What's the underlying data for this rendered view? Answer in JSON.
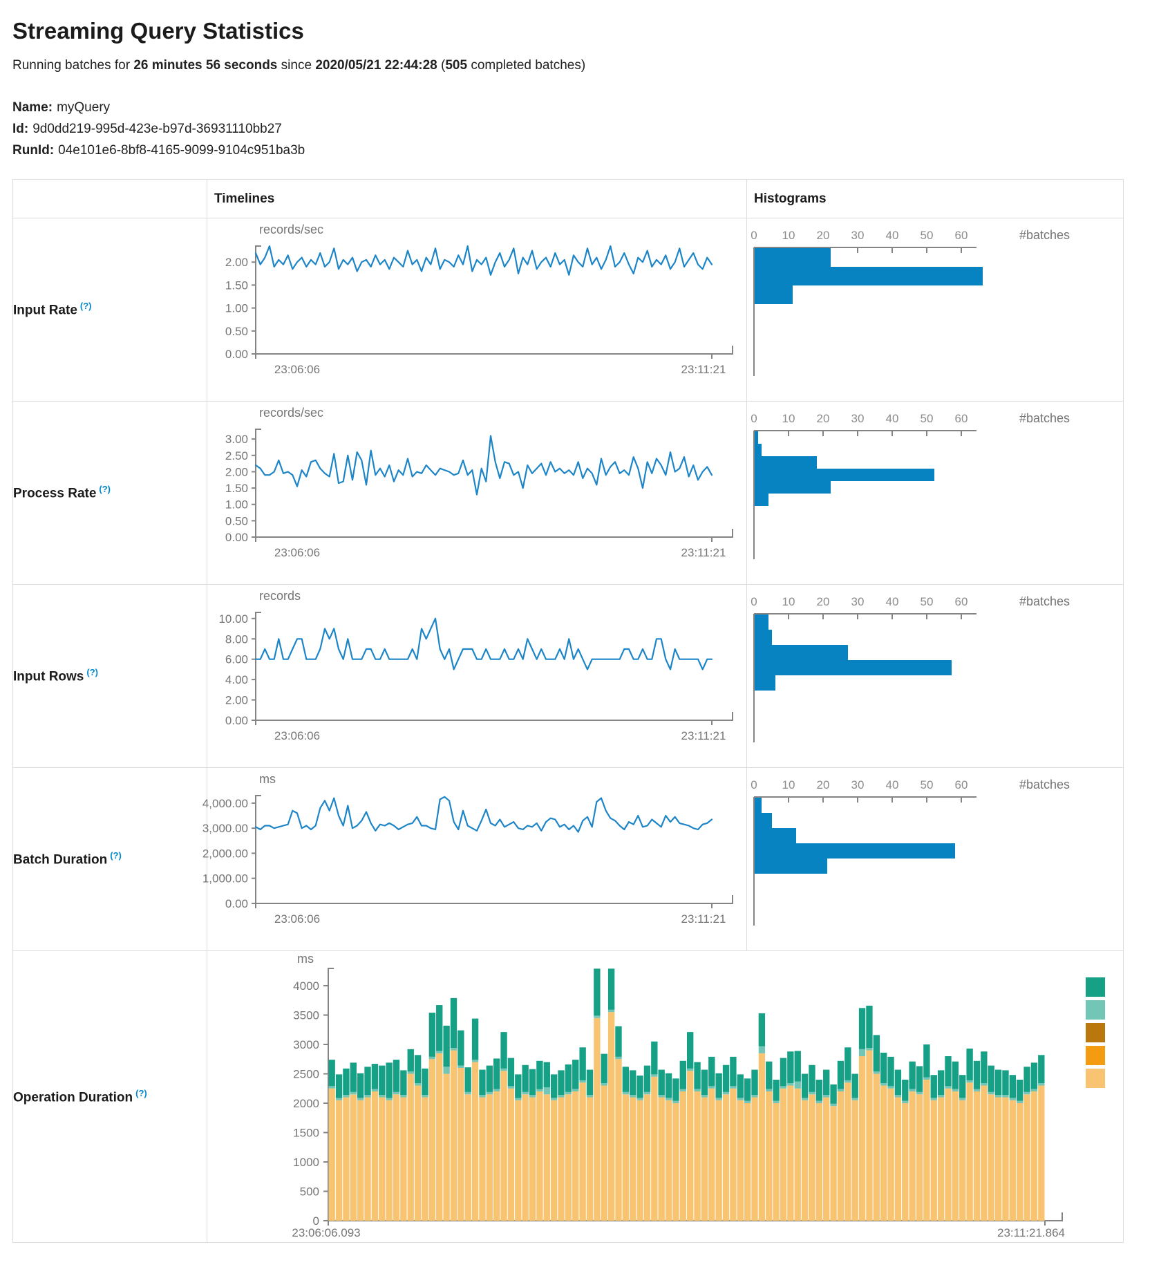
{
  "page": {
    "title": "Streaming Query Statistics",
    "subtitle": {
      "prefix": "Running batches for ",
      "duration": "26 minutes 56 seconds",
      "middle": " since ",
      "start_time": "2020/05/21 22:44:28",
      "paren_open": " (",
      "batch_count": "505",
      "suffix": " completed batches)"
    },
    "meta": {
      "name_label": "Name:",
      "name": "myQuery",
      "id_label": "Id:",
      "id": "9d0dd219-995d-423e-b97d-36931110bb27",
      "runid_label": "RunId:",
      "runid": "04e101e6-8bf8-4165-9099-9104c951ba3b"
    }
  },
  "table": {
    "headers": {
      "timelines": "Timelines",
      "histograms": "Histograms"
    },
    "rows": [
      {
        "label": "Input Rate",
        "help": "(?)"
      },
      {
        "label": "Process Rate",
        "help": "(?)"
      },
      {
        "label": "Input Rows",
        "help": "(?)"
      },
      {
        "label": "Batch Duration",
        "help": "(?)"
      },
      {
        "label": "Operation Duration",
        "help": "(?)"
      }
    ]
  },
  "colors": {
    "line_blue": "#1c85c7",
    "hist_bar_blue": "#0783c2",
    "axis_gray": "#848484",
    "label_gray": "#757575",
    "tick_gray": "#8c8c8c",
    "help_blue": "#0088cc",
    "border_gray": "#dcdcdc",
    "stack_light_orange": "#F8C471",
    "stack_orange": "#F39C12",
    "stack_brown": "#B9770E",
    "stack_light_teal": "#73C6B6",
    "stack_green": "#16A085"
  },
  "chart_data": [
    {
      "type": "line",
      "metric": "input_rate",
      "unit": "records/sec",
      "x_start": "23:06:06",
      "x_end": "23:11:21",
      "y_max": 2.35,
      "y_ticks": [
        0,
        0.5,
        1,
        1.5,
        2
      ],
      "y_tick_labels": [
        "0.00",
        "0.50",
        "1.00",
        "1.50",
        "2.00"
      ],
      "values": [
        2.2,
        1.95,
        2.1,
        2.35,
        1.9,
        2.05,
        1.95,
        2.15,
        1.85,
        2.0,
        2.1,
        1.9,
        2.05,
        1.95,
        2.2,
        1.9,
        2.0,
        2.3,
        1.85,
        2.05,
        1.95,
        2.1,
        1.8,
        2.0,
        2.05,
        1.9,
        2.15,
        1.95,
        2.05,
        1.85,
        2.1,
        2.0,
        1.9,
        2.25,
        1.95,
        2.05,
        1.8,
        2.1,
        1.95,
        2.3,
        1.85,
        2.05,
        2.0,
        1.9,
        2.15,
        1.95,
        2.35,
        1.8,
        2.05,
        1.95,
        2.1,
        1.72,
        2.0,
        2.2,
        1.9,
        2.05,
        2.3,
        1.75,
        2.1,
        1.95,
        2.25,
        1.85,
        2.0,
        2.1,
        1.9,
        2.2,
        1.95,
        2.05,
        1.72,
        2.15,
        2.0,
        1.9,
        2.3,
        1.95,
        2.1,
        1.85,
        2.05,
        2.35,
        1.9,
        2.0,
        2.2,
        1.95,
        1.75,
        2.1,
        2.0,
        2.25,
        1.9,
        2.05,
        1.95,
        2.15,
        1.85,
        2.0,
        2.3,
        1.9,
        2.05,
        2.2,
        1.95,
        1.85,
        2.1,
        1.95
      ]
    },
    {
      "type": "hbar",
      "metric": "input_rate",
      "axis_label": "#batches",
      "x_ticks": [
        0,
        10,
        20,
        30,
        40,
        50,
        60
      ],
      "bin_values": [
        22,
        66,
        11
      ]
    },
    {
      "type": "line",
      "metric": "process_rate",
      "unit": "records/sec",
      "x_start": "23:06:06",
      "x_end": "23:11:21",
      "y_max": 3.3,
      "y_ticks": [
        0,
        0.5,
        1,
        1.5,
        2,
        2.5,
        3
      ],
      "y_tick_labels": [
        "0.00",
        "0.50",
        "1.00",
        "1.50",
        "2.00",
        "2.50",
        "3.00"
      ],
      "values": [
        2.2,
        2.1,
        1.9,
        1.9,
        2.0,
        2.35,
        1.95,
        2.0,
        1.9,
        1.55,
        2.05,
        1.85,
        2.3,
        2.35,
        2.1,
        1.95,
        1.85,
        2.55,
        1.65,
        1.7,
        2.5,
        1.75,
        2.6,
        2.35,
        1.6,
        2.65,
        1.9,
        2.1,
        1.85,
        2.2,
        1.7,
        2.05,
        1.9,
        2.4,
        1.85,
        2.0,
        1.95,
        2.2,
        2.05,
        1.9,
        2.1,
        2.05,
        2.0,
        1.9,
        1.95,
        2.35,
        1.9,
        2.05,
        1.3,
        2.1,
        1.7,
        3.1,
        2.3,
        1.8,
        2.3,
        2.25,
        1.9,
        2.0,
        1.5,
        2.2,
        1.95,
        2.1,
        2.25,
        1.9,
        2.3,
        2.0,
        2.1,
        1.95,
        2.05,
        1.9,
        2.3,
        1.8,
        2.1,
        1.95,
        1.6,
        2.4,
        1.9,
        2.15,
        2.3,
        1.95,
        2.05,
        1.9,
        2.45,
        2.1,
        1.5,
        2.3,
        1.95,
        2.4,
        2.2,
        1.9,
        2.6,
        2.0,
        2.1,
        2.45,
        1.85,
        2.2,
        1.75,
        2.0,
        2.15,
        1.9
      ]
    },
    {
      "type": "hbar",
      "metric": "process_rate",
      "axis_label": "#batches",
      "x_ticks": [
        0,
        10,
        20,
        30,
        40,
        50,
        60
      ],
      "bin_values": [
        1,
        2,
        18,
        52,
        22,
        4
      ]
    },
    {
      "type": "line",
      "metric": "input_rows",
      "unit": "records",
      "x_start": "23:06:06",
      "x_end": "23:11:21",
      "y_max": 10.6,
      "y_ticks": [
        0,
        2,
        4,
        6,
        8,
        10
      ],
      "y_tick_labels": [
        "0.00",
        "2.00",
        "4.00",
        "6.00",
        "8.00",
        "10.00"
      ],
      "values": [
        6,
        6,
        7,
        6,
        6,
        8,
        6,
        6,
        7,
        8,
        8,
        6,
        6,
        6,
        7,
        9,
        8,
        9,
        7,
        6,
        8,
        6,
        6,
        6,
        7,
        7,
        6,
        6,
        7,
        6,
        6,
        6,
        6,
        6,
        7,
        6,
        9,
        8,
        9,
        10,
        7,
        6,
        7,
        5,
        6,
        7,
        7,
        7,
        6,
        6,
        7,
        6,
        6,
        6,
        7,
        6,
        6,
        7,
        6,
        8,
        7,
        6,
        7,
        6,
        6,
        6,
        7,
        6,
        8,
        6,
        7,
        6,
        5,
        6,
        6,
        6,
        6,
        6,
        6,
        6,
        7,
        7,
        6,
        6,
        7,
        6,
        6,
        8,
        8,
        6,
        5,
        7,
        6,
        6,
        6,
        6,
        6,
        5,
        6,
        6
      ]
    },
    {
      "type": "hbar",
      "metric": "input_rows",
      "axis_label": "#batches",
      "x_ticks": [
        0,
        10,
        20,
        30,
        40,
        50,
        60
      ],
      "bin_values": [
        4,
        5,
        27,
        57,
        6
      ]
    },
    {
      "type": "line",
      "metric": "batch_duration",
      "unit": "ms",
      "x_start": "23:06:06",
      "x_end": "23:11:21",
      "y_max": 4300,
      "y_ticks": [
        0,
        1000,
        2000,
        3000,
        4000
      ],
      "y_tick_labels": [
        "0.00",
        "1,000.00",
        "2,000.00",
        "3,000.00",
        "4,000.00"
      ],
      "values": [
        3050,
        2950,
        3100,
        3100,
        3000,
        3050,
        3100,
        3150,
        3700,
        3600,
        3000,
        3100,
        2950,
        3100,
        3800,
        4100,
        3700,
        4200,
        3500,
        3100,
        3900,
        3000,
        3100,
        3300,
        3650,
        3200,
        2900,
        3150,
        3100,
        3200,
        3100,
        2950,
        3050,
        3150,
        3200,
        3450,
        3100,
        3100,
        3000,
        2950,
        4150,
        4250,
        4100,
        3250,
        2950,
        3700,
        3100,
        3000,
        2900,
        3300,
        3750,
        3200,
        3100,
        3350,
        3050,
        3150,
        3250,
        3000,
        2950,
        3100,
        3050,
        3200,
        2900,
        3250,
        3400,
        3350,
        3050,
        3150,
        2950,
        3100,
        2850,
        3300,
        3450,
        3050,
        4050,
        4200,
        3700,
        3400,
        3300,
        3100,
        2950,
        3250,
        3150,
        3500,
        3050,
        3100,
        3350,
        3200,
        3050,
        3500,
        3250,
        3450,
        3200,
        3150,
        3100,
        3000,
        2950,
        3150,
        3200,
        3350
      ]
    },
    {
      "type": "hbar",
      "metric": "batch_duration",
      "axis_label": "#batches",
      "x_ticks": [
        0,
        10,
        20,
        30,
        40,
        50,
        60
      ],
      "bin_values": [
        2,
        5,
        12,
        58,
        21
      ]
    },
    {
      "type": "stacked_bar",
      "metric": "operation_duration",
      "unit": "ms",
      "x_start": "23:06:06.093",
      "x_end": "23:11:21.864",
      "y_max": 4400,
      "y_ticks": [
        0,
        500,
        1000,
        1500,
        2000,
        2500,
        3000,
        3500,
        4000
      ],
      "y_tick_labels": [
        "0",
        "500",
        "1000",
        "1500",
        "2000",
        "2500",
        "3000",
        "3500",
        "4000"
      ],
      "legend_colors": [
        "#16A085",
        "#73C6B6",
        "#B9770E",
        "#F39C12",
        "#F8C471"
      ],
      "series": [
        {
          "color": "#F8C471",
          "values": [
            2250,
            2050,
            2100,
            2150,
            2050,
            2100,
            2200,
            2100,
            2050,
            2150,
            2100,
            2500,
            2300,
            2100,
            2750,
            2850,
            2500,
            2900,
            2600,
            2150,
            2700,
            2100,
            2150,
            2200,
            2550,
            2250,
            2050,
            2150,
            2100,
            2200,
            2150,
            2050,
            2100,
            2150,
            2200,
            2350,
            2100,
            3450,
            2300,
            3550,
            2750,
            2150,
            2100,
            2050,
            2150,
            2450,
            2100,
            2050,
            2000,
            2200,
            2550,
            2200,
            2100,
            2250,
            2050,
            2150,
            2250,
            2050,
            2000,
            2100,
            2850,
            2200,
            2000,
            2250,
            2300,
            2250,
            2050,
            2150,
            2000,
            2100,
            1950,
            2200,
            2350,
            2050,
            2800,
            2900,
            2500,
            2300,
            2250,
            2100,
            2000,
            2200,
            2150,
            2400,
            2050,
            2100,
            2250,
            2200,
            2050,
            2350,
            2200,
            2300,
            2150,
            2100,
            2100,
            2050,
            2000,
            2150,
            2200,
            2300
          ]
        },
        {
          "color": "#73C6B6",
          "values": [
            40,
            40,
            40,
            40,
            40,
            40,
            40,
            40,
            40,
            40,
            40,
            40,
            40,
            40,
            40,
            40,
            120,
            40,
            40,
            40,
            40,
            40,
            40,
            40,
            40,
            40,
            40,
            40,
            40,
            40,
            120,
            40,
            40,
            40,
            40,
            40,
            40,
            40,
            40,
            40,
            40,
            40,
            40,
            40,
            40,
            40,
            40,
            40,
            40,
            40,
            40,
            40,
            40,
            40,
            40,
            40,
            40,
            40,
            40,
            40,
            120,
            40,
            40,
            40,
            40,
            120,
            40,
            40,
            40,
            40,
            40,
            40,
            40,
            40,
            120,
            40,
            40,
            40,
            40,
            40,
            40,
            40,
            40,
            40,
            40,
            40,
            40,
            40,
            40,
            40,
            40,
            40,
            40,
            40,
            40,
            40,
            40,
            40,
            40,
            40
          ]
        },
        {
          "color": "#16A085",
          "values": [
            450,
            400,
            450,
            500,
            420,
            480,
            430,
            500,
            600,
            550,
            420,
            380,
            480,
            450,
            750,
            780,
            700,
            850,
            600,
            420,
            700,
            430,
            450,
            520,
            620,
            480,
            400,
            460,
            440,
            480,
            430,
            400,
            420,
            470,
            500,
            560,
            430,
            800,
            500,
            700,
            520,
            430,
            420,
            380,
            450,
            560,
            430,
            420,
            380,
            480,
            620,
            460,
            430,
            500,
            420,
            460,
            500,
            400,
            380,
            430,
            560,
            470,
            360,
            480,
            540,
            520,
            410,
            460,
            360,
            430,
            330,
            480,
            560,
            410,
            700,
            720,
            620,
            520,
            500,
            430,
            360,
            470,
            440,
            560,
            390,
            420,
            510,
            470,
            390,
            540,
            480,
            540,
            450,
            430,
            420,
            390,
            360,
            430,
            450,
            480
          ]
        }
      ]
    }
  ]
}
